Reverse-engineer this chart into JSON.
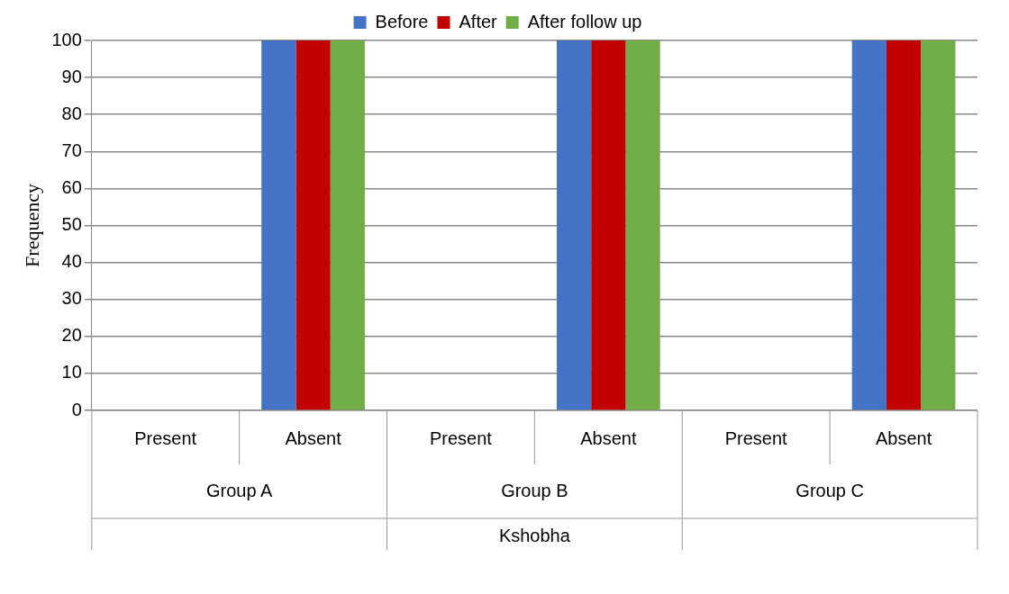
{
  "chart_data": {
    "type": "bar",
    "ylabel": "Frequency",
    "xlabel": "Kshobha",
    "categories": [
      "Present",
      "Absent",
      "Present",
      "Absent",
      "Present",
      "Absent"
    ],
    "series": [
      {
        "name": "Before",
        "color": "#4472c4",
        "values": [
          0,
          100,
          0,
          100,
          0,
          100
        ]
      },
      {
        "name": "After",
        "color": "#c00000",
        "values": [
          0,
          100,
          0,
          100,
          0,
          100
        ]
      },
      {
        "name": "After follow up",
        "color": "#70ad47",
        "values": [
          0,
          100,
          0,
          100,
          0,
          100
        ]
      }
    ],
    "annotations": [
      "Group A",
      "Group B",
      "Group C"
    ],
    "ylim": [
      0,
      100
    ],
    "yticks": [
      0,
      10,
      20,
      30,
      40,
      50,
      60,
      70,
      80,
      90,
      100
    ],
    "grid": "y",
    "legend": "top"
  }
}
